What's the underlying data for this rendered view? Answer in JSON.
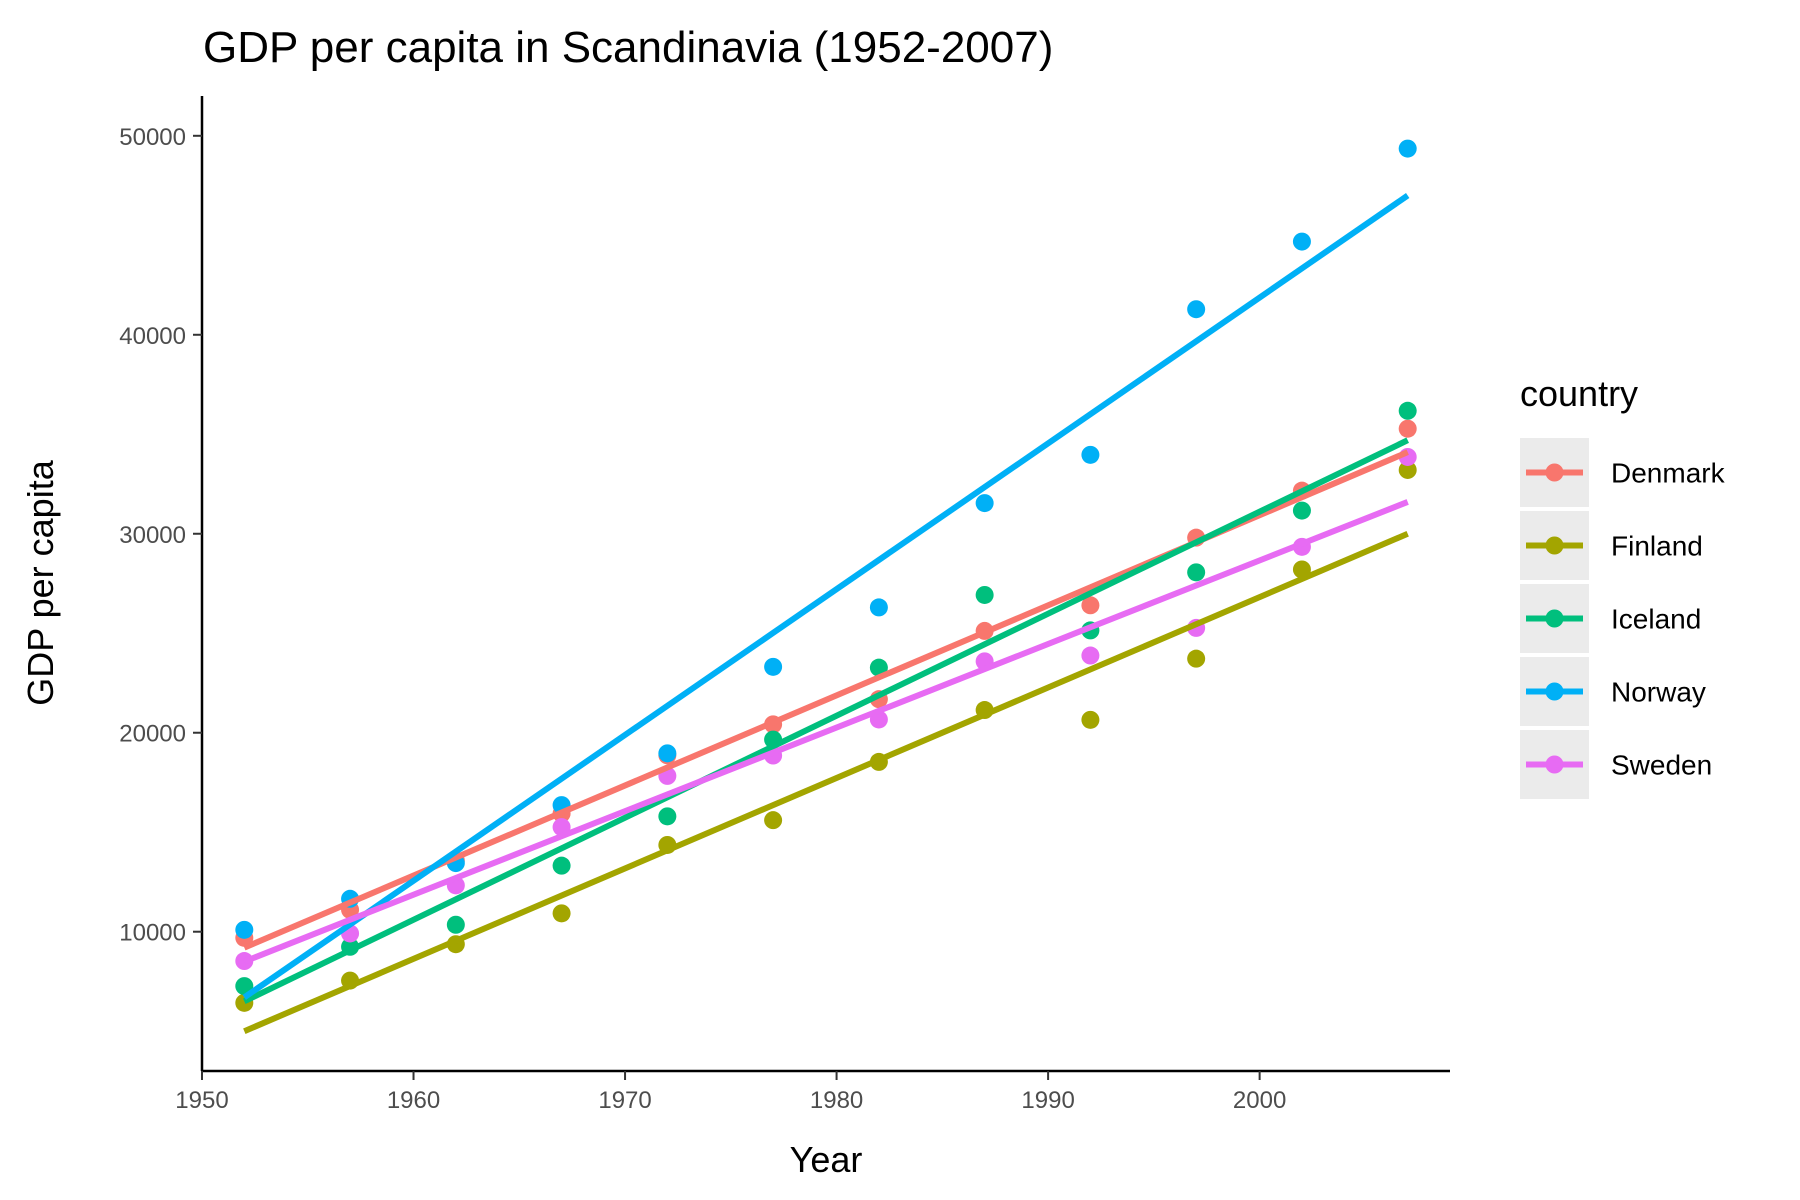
{
  "chart_data": {
    "type": "scatter",
    "title": "GDP per capita in Scandinavia (1952-2007)",
    "xlabel": "Year",
    "ylabel": "GDP per capita",
    "xlim": [
      1950,
      2009
    ],
    "ylim": [
      3000,
      52000
    ],
    "x_ticks": [
      1950,
      1960,
      1970,
      1980,
      1990,
      2000
    ],
    "y_ticks": [
      10000,
      20000,
      30000,
      40000,
      50000
    ],
    "grid": false,
    "legend": {
      "title": "country",
      "position": "right"
    },
    "x": [
      1952,
      1957,
      1962,
      1967,
      1972,
      1977,
      1982,
      1987,
      1992,
      1997,
      2002,
      2007
    ],
    "series": [
      {
        "name": "Denmark",
        "color": "#F8766D",
        "values": [
          9692,
          11100,
          13583,
          15937,
          18866,
          20422,
          21688,
          25116,
          26406,
          29804,
          32166,
          35278
        ],
        "trend": [
          9200,
          34100
        ]
      },
      {
        "name": "Finland",
        "color": "#A3A500",
        "values": [
          6424,
          7545,
          9372,
          10922,
          14359,
          15605,
          18533,
          21141,
          20647,
          23724,
          28205,
          33207
        ],
        "trend": [
          5000,
          30000
        ]
      },
      {
        "name": "Iceland",
        "color": "#00BF7D",
        "values": [
          7268,
          9244,
          10350,
          13319,
          15798,
          19655,
          23270,
          26923,
          25144,
          28061,
          31163,
          36181
        ],
        "trend": [
          6500,
          34700
        ]
      },
      {
        "name": "Norway",
        "color": "#00B0F6",
        "values": [
          10095,
          11654,
          13450,
          16362,
          18965,
          23311,
          26299,
          31541,
          33965,
          41283,
          44684,
          49357
        ],
        "trend": [
          6700,
          47000
        ]
      },
      {
        "name": "Sweden",
        "color": "#E76BF3",
        "values": [
          8528,
          9912,
          12329,
          15258,
          17832,
          18856,
          20667,
          23587,
          23880,
          25267,
          29342,
          33860
        ],
        "trend": [
          8500,
          31600
        ]
      }
    ]
  }
}
